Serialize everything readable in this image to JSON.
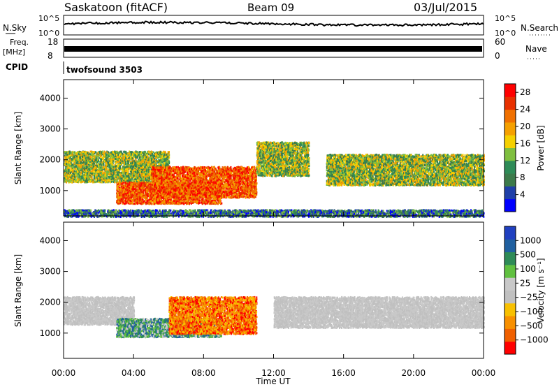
{
  "header": {
    "station": "Saskatoon (fitACF)",
    "beam": "Beam 09",
    "date": "03/Jul/2015"
  },
  "panels": {
    "nsky": {
      "label": "N.Sky",
      "right_label": "N.Search",
      "left_ticks": [
        "10^5",
        "10^0"
      ],
      "right_ticks": [
        "10^5",
        "10^0"
      ]
    },
    "freq": {
      "label_line1": "Freq.",
      "label_line2": "[MHz]",
      "left_ticks": [
        "18",
        "8"
      ],
      "right_ticks": [
        "60",
        "0"
      ],
      "right_label": "Nave"
    },
    "cpid": {
      "label": "CPID",
      "value": "twofsound 3503"
    }
  },
  "colors": {
    "power_scale": [
      "#0000ff",
      "#1f3fa8",
      "#3c7a4a",
      "#2e8b57",
      "#7fbf3f",
      "#f5d000",
      "#f5a000",
      "#f07000",
      "#e83000",
      "#ff0000"
    ],
    "velocity_scale": [
      "#2040c0",
      "#2060a0",
      "#2e8b57",
      "#60c040",
      "#c8c8c8",
      "#c0c0c0",
      "#f8c000",
      "#f89000",
      "#f06000",
      "#ff0000"
    ]
  },
  "chart_data": [
    {
      "type": "heatmap",
      "title": "Power",
      "ylabel": "Slant Range [km]",
      "xlabel": "Time UT",
      "ylim": [
        180,
        4600
      ],
      "xlim": [
        0,
        24
      ],
      "yticks": [
        "1000",
        "2000",
        "3000",
        "4000"
      ],
      "xticks": [
        "00:00",
        "04:00",
        "08:00",
        "12:00",
        "16:00",
        "20:00",
        "00:00"
      ],
      "colorbar": {
        "label": "Power [dB]",
        "ticks": [
          "4",
          "8",
          "12",
          "16",
          "20",
          "24",
          "28"
        ],
        "range": [
          0,
          30
        ]
      },
      "regions": [
        {
          "t": [
            0,
            6
          ],
          "r": [
            1300,
            2300
          ],
          "level": "mid"
        },
        {
          "t": [
            3,
            9
          ],
          "r": [
            600,
            1300
          ],
          "level": "high"
        },
        {
          "t": [
            5,
            11
          ],
          "r": [
            800,
            1800
          ],
          "level": "high"
        },
        {
          "t": [
            11,
            14
          ],
          "r": [
            1500,
            2600
          ],
          "level": "mid"
        },
        {
          "t": [
            15,
            24
          ],
          "r": [
            1200,
            2200
          ],
          "level": "mid"
        },
        {
          "t": [
            0,
            24
          ],
          "r": [
            180,
            400
          ],
          "level": "low"
        }
      ]
    },
    {
      "type": "heatmap",
      "title": "Velocity",
      "ylabel": "Slant Range [km]",
      "xlabel": "Time UT",
      "ylim": [
        180,
        4600
      ],
      "xlim": [
        0,
        24
      ],
      "yticks": [
        "1000",
        "2000",
        "3000",
        "4000"
      ],
      "xticks": [
        "00:00",
        "04:00",
        "08:00",
        "12:00",
        "16:00",
        "20:00",
        "00:00"
      ],
      "colorbar": {
        "label": "Velocity [m s⁻¹]",
        "ticks": [
          "1000",
          "500",
          "100",
          "25",
          "−25",
          "−100",
          "−500",
          "−1000"
        ]
      },
      "regions": [
        {
          "t": [
            0,
            4
          ],
          "r": [
            1300,
            2200
          ],
          "level": "ground"
        },
        {
          "t": [
            3,
            9
          ],
          "r": [
            900,
            1500
          ],
          "level": "toward_slow"
        },
        {
          "t": [
            6,
            11
          ],
          "r": [
            1000,
            2200
          ],
          "level": "away"
        },
        {
          "t": [
            12,
            24
          ],
          "r": [
            1200,
            2200
          ],
          "level": "ground"
        }
      ]
    }
  ],
  "axis_label": "Time UT"
}
